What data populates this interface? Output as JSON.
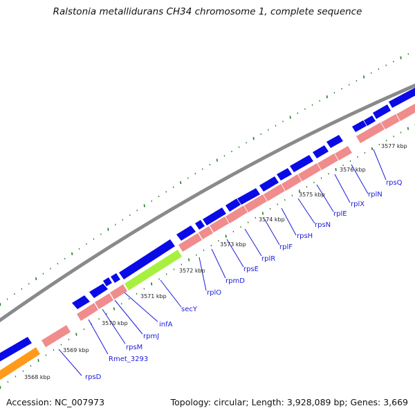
{
  "title": "Ralstonia metallidurans CH34 chromosome 1, complete sequence",
  "footer": {
    "accession": "Accession: NC_007973",
    "topology": "Topology: circular; Length: 3,928,089 bp; Genes: 3,669"
  },
  "colors": {
    "backbone": "#8a8a8a",
    "forward_gene": "#0a0ae6",
    "rna_gene": "#f08c8c",
    "highlight_gene": "#a8f040",
    "orange_gene": "#ff9a1a",
    "tick": "#1e7a1e",
    "label": "#1a1adb"
  },
  "kbp_labels": [
    "3568 kbp",
    "3569 kbp",
    "3570 kbp",
    "3571 kbp",
    "3572 kbp",
    "3573 kbp",
    "3574 kbp",
    "3575 kbp",
    "3576 kbp",
    "3577 kbp"
  ],
  "gene_labels": [
    "rpsD",
    "Rmet_3293",
    "rpsM",
    "rpmJ",
    "infA",
    "secY",
    "rplO",
    "rpmD",
    "rpsE",
    "rplR",
    "rplF",
    "rpsH",
    "rpsN",
    "rplE",
    "rplX",
    "rplN",
    "rpsQ"
  ]
}
